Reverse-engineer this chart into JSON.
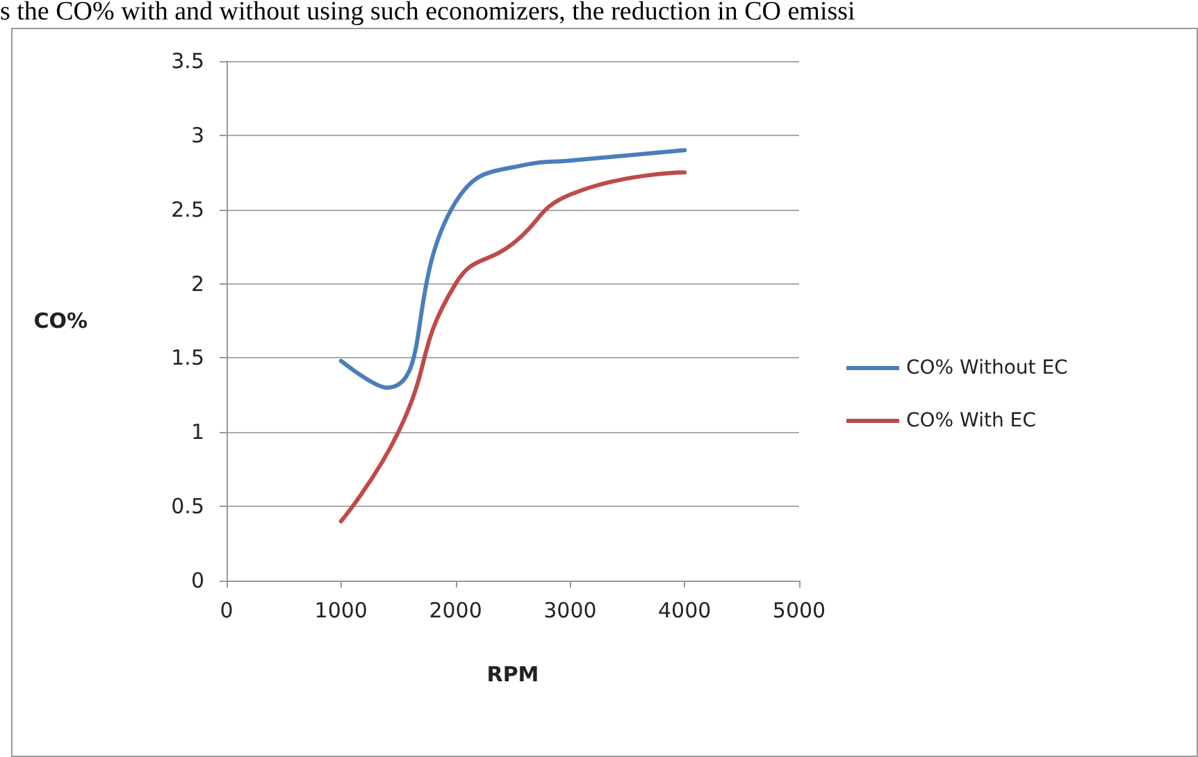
{
  "chart_data": {
    "type": "line",
    "xlabel": "RPM",
    "ylabel": "CO%",
    "annotations": [
      "s the CO% with and without using such economizers, the reduction in CO emissi"
    ],
    "series": [
      {
        "name": "CO% Without EC",
        "color": "#4a7ebb",
        "x": [
          1000,
          1400,
          2000,
          2600,
          3000,
          4000
        ],
        "values": [
          1.48,
          1.3,
          2.55,
          2.8,
          2.83,
          2.9
        ]
      },
      {
        "name": "CO% With EC",
        "color": "#be4b48",
        "x": [
          1000,
          1500,
          2000,
          2500,
          3000,
          4000
        ],
        "values": [
          0.4,
          1.0,
          2.0,
          2.27,
          2.6,
          2.75
        ]
      }
    ],
    "xlim": [
      0,
      5000
    ],
    "xticks": [
      0,
      1000,
      2000,
      3000,
      4000,
      5000
    ],
    "ylim": [
      0,
      3.5
    ],
    "yticks": [
      0,
      0.5,
      1,
      1.5,
      2,
      2.5,
      3,
      3.5
    ],
    "grid": "y",
    "legend": "right",
    "marker": "none",
    "line_style": "solid"
  }
}
